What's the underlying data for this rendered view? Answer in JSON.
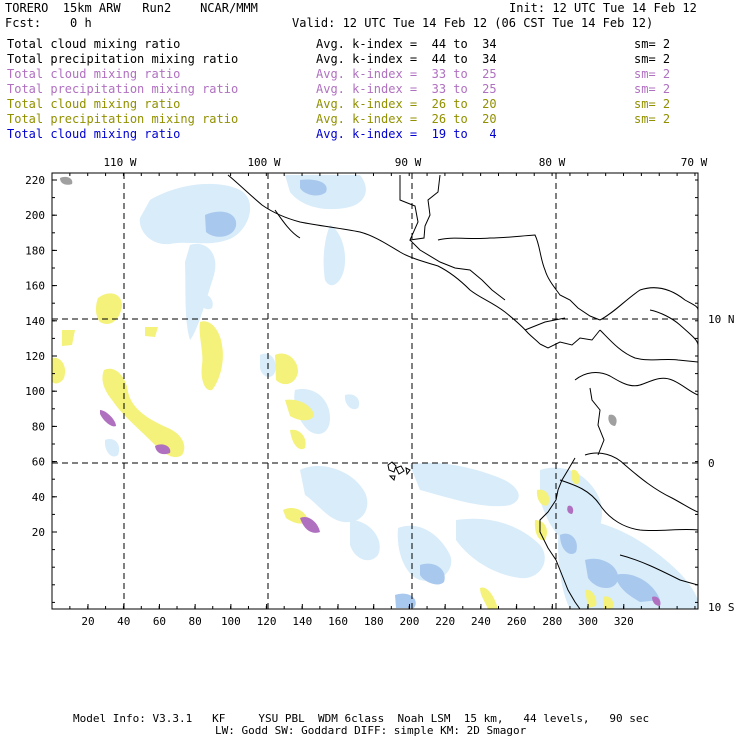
{
  "header": {
    "model": "TORERO  15km ARW   Run2    NCAR/MMM",
    "init": "Init: 12 UTC Tue 14 Feb 12",
    "fcst": "Fcst:    0 h",
    "valid": "Valid: 12 UTC Tue 14 Feb 12 (06 CST Tue 14 Feb 12)"
  },
  "legend": [
    {
      "field": "Total cloud mixing ratio",
      "index": "Avg. k-index =  44 to  34",
      "sm": "sm= 2",
      "color": "#000000"
    },
    {
      "field": "Total precipitation mixing ratio",
      "index": "Avg. k-index =  44 to  34",
      "sm": "sm= 2",
      "color": "#000000"
    },
    {
      "field": "Total cloud mixing ratio",
      "index": "Avg. k-index =  33 to  25",
      "sm": "sm= 2",
      "color": "#b070c0"
    },
    {
      "field": "Total precipitation mixing ratio",
      "index": "Avg. k-index =  33 to  25",
      "sm": "sm= 2",
      "color": "#b070c0"
    },
    {
      "field": "Total cloud mixing ratio",
      "index": "Avg. k-index =  26 to  20",
      "sm": "sm= 2",
      "color": "#909000"
    },
    {
      "field": "Total precipitation mixing ratio",
      "index": "Avg. k-index =  26 to  20",
      "sm": "sm= 2",
      "color": "#909000"
    },
    {
      "field": "Total cloud mixing ratio",
      "index": "Avg. k-index =  19 to   4",
      "sm": "",
      "color": "#0000d0"
    }
  ],
  "map": {
    "lon_labels": [
      "110 W",
      "100 W",
      "90 W",
      "80 W",
      "70 W"
    ],
    "lat_labels": [
      "10 N",
      "0",
      "10 S"
    ],
    "y_ticks": [
      "220",
      "200",
      "180",
      "160",
      "140",
      "120",
      "100",
      "80",
      "60",
      "40",
      "20"
    ],
    "x_ticks": [
      "20",
      "40",
      "60",
      "80",
      "100",
      "120",
      "140",
      "160",
      "180",
      "200",
      "220",
      "240",
      "260",
      "280",
      "300",
      "320"
    ],
    "colors": {
      "cloud_light": "#d8ecfa",
      "cloud_mid": "#a8c8ee",
      "yellow": "#f4f27a",
      "purple": "#b070c0",
      "gray": "#a0a0a0"
    }
  },
  "footer": {
    "line1": "Model Info: V3.3.1   KF     YSU PBL  WDM 6class  Noah LSM  15 km,   44 levels,   90 sec",
    "line2": "LW: Godd SW: Goddard DIFF: simple KM: 2D Smagor"
  }
}
